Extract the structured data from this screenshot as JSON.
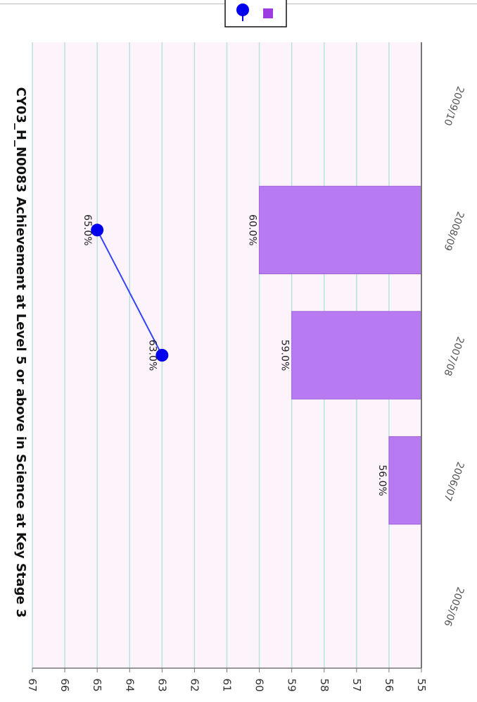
{
  "chart_data": {
    "type": "bar",
    "orientation": "rotated-90-clockwise",
    "title": "CY03_H_N0083 Achievement at Level 5 or above in Science at Key Stage 3",
    "categories": [
      "2005/06",
      "2006/07",
      "2007/08",
      "2008/09",
      "2009/10"
    ],
    "series": [
      {
        "kind": "line",
        "color": "#0000ee",
        "values": [
          null,
          null,
          63,
          65,
          null
        ],
        "labels": [
          "",
          "",
          "63.0%",
          "65.0%",
          ""
        ]
      },
      {
        "kind": "bar",
        "color": "#b87af0",
        "values": [
          null,
          56,
          59,
          60,
          null
        ],
        "labels": [
          "",
          "56.0%",
          "59.0%",
          "60.0%",
          ""
        ]
      }
    ],
    "ylim": [
      55,
      67
    ],
    "yticks": [
      "55",
      "56",
      "57",
      "58",
      "59",
      "60",
      "61",
      "62",
      "63",
      "64",
      "65",
      "66",
      "67"
    ],
    "grid": true,
    "legend": {
      "placement": "top",
      "line_icon": "circle-marker-icon",
      "bar_icon": "square-icon"
    },
    "colors": {
      "background": "#fdf4fb",
      "grid": "#b9e1e1",
      "axis": "#777777"
    }
  }
}
